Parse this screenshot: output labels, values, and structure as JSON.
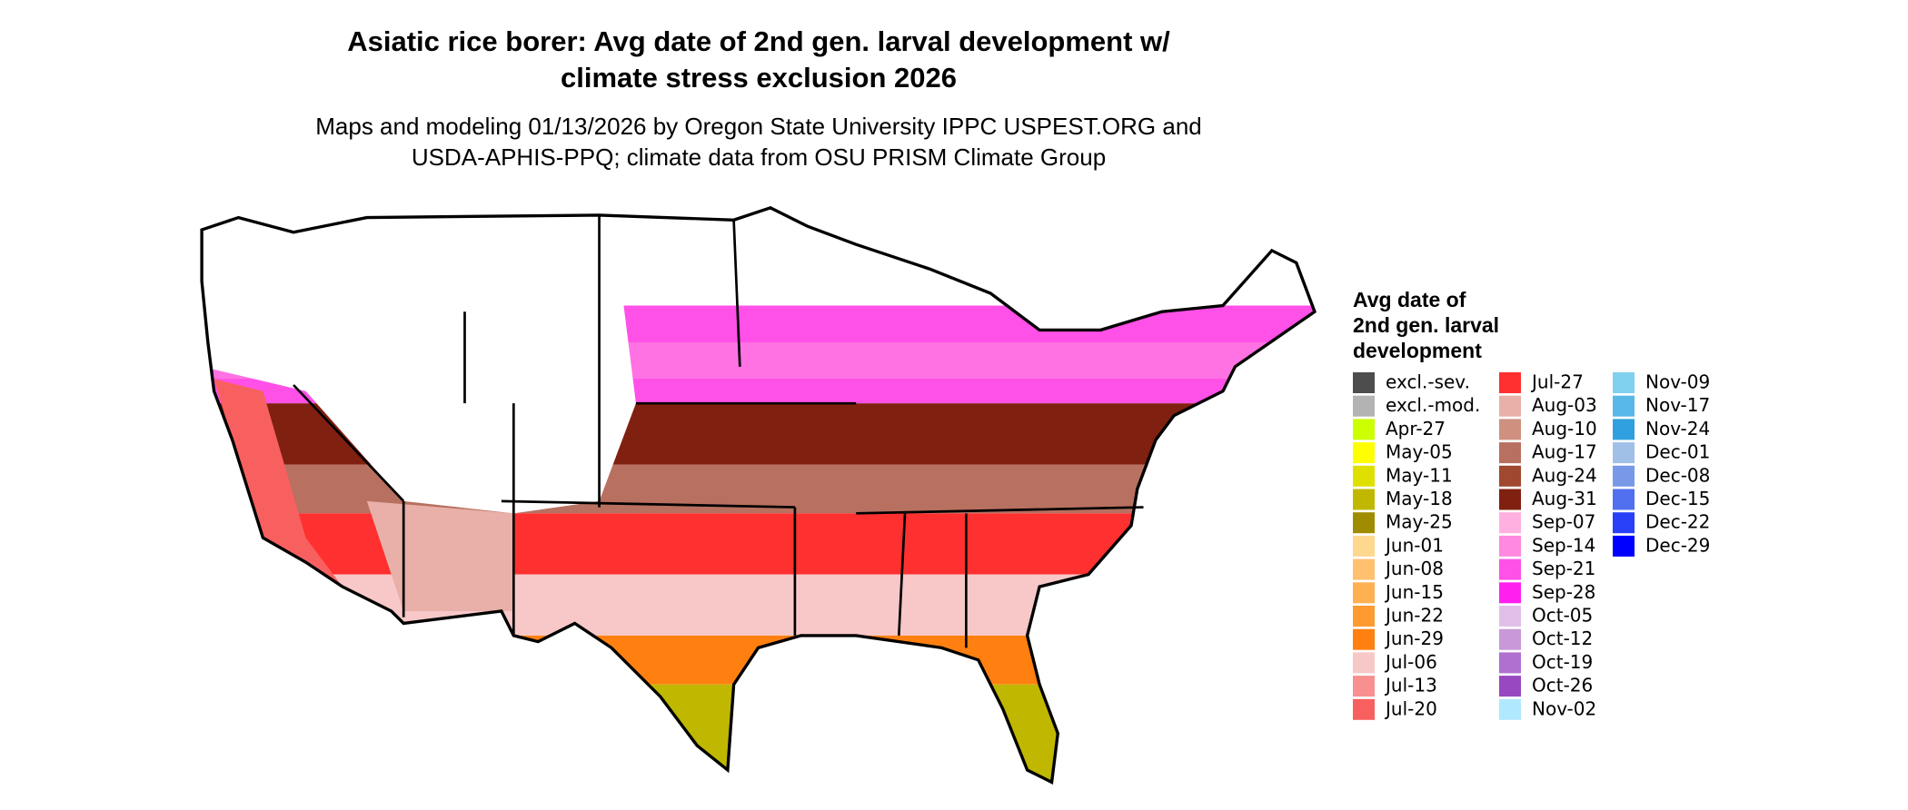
{
  "header": {
    "title_lines": [
      "Asiatic rice borer: Avg date of 2nd gen. larval development w/",
      "climate stress exclusion 2026"
    ],
    "subtitle_lines": [
      "Maps and modeling 01/13/2026 by Oregon State University IPPC USPEST.ORG and",
      "USDA-APHIS-PPQ; climate data from OSU PRISM Climate Group"
    ]
  },
  "legend": {
    "title_lines": [
      "Avg date of",
      "2nd gen. larval",
      "development"
    ],
    "rows_per_column": 15,
    "items": [
      {
        "label": "excl.-sev.",
        "color": "#4d4d4d"
      },
      {
        "label": "excl.-mod.",
        "color": "#b3b3b3"
      },
      {
        "label": "Apr-27",
        "color": "#ccff00"
      },
      {
        "label": "May-05",
        "color": "#ffff00"
      },
      {
        "label": "May-11",
        "color": "#e0e000"
      },
      {
        "label": "May-18",
        "color": "#c0b800"
      },
      {
        "label": "May-25",
        "color": "#a08c00"
      },
      {
        "label": "Jun-01",
        "color": "#ffd890"
      },
      {
        "label": "Jun-08",
        "color": "#ffc070"
      },
      {
        "label": "Jun-15",
        "color": "#ffb050"
      },
      {
        "label": "Jun-22",
        "color": "#ff9a30"
      },
      {
        "label": "Jun-29",
        "color": "#ff8010"
      },
      {
        "label": "Jul-06",
        "color": "#f8c8c8"
      },
      {
        "label": "Jul-13",
        "color": "#f89090"
      },
      {
        "label": "Jul-20",
        "color": "#f86060"
      },
      {
        "label": "Jul-27",
        "color": "#ff3030"
      },
      {
        "label": "Aug-03",
        "color": "#e8b0a8"
      },
      {
        "label": "Aug-10",
        "color": "#d09080"
      },
      {
        "label": "Aug-17",
        "color": "#b87060"
      },
      {
        "label": "Aug-24",
        "color": "#a04830"
      },
      {
        "label": "Aug-31",
        "color": "#802010"
      },
      {
        "label": "Sep-07",
        "color": "#ffb0e0"
      },
      {
        "label": "Sep-14",
        "color": "#ff88e0"
      },
      {
        "label": "Sep-21",
        "color": "#ff50e8"
      },
      {
        "label": "Sep-28",
        "color": "#ff20f0"
      },
      {
        "label": "Oct-05",
        "color": "#e0c0e8"
      },
      {
        "label": "Oct-12",
        "color": "#c898d8"
      },
      {
        "label": "Oct-19",
        "color": "#b070d0"
      },
      {
        "label": "Oct-26",
        "color": "#9848c0"
      },
      {
        "label": "Nov-02",
        "color": "#b0e8ff"
      },
      {
        "label": "Nov-09",
        "color": "#80d0f0"
      },
      {
        "label": "Nov-17",
        "color": "#58b8e8"
      },
      {
        "label": "Nov-24",
        "color": "#30a0e0"
      },
      {
        "label": "Dec-01",
        "color": "#a0c0e8"
      },
      {
        "label": "Dec-08",
        "color": "#7898e8"
      },
      {
        "label": "Dec-15",
        "color": "#5070f0"
      },
      {
        "label": "Dec-22",
        "color": "#2840f8"
      },
      {
        "label": "Dec-29",
        "color": "#0000ff"
      }
    ]
  }
}
